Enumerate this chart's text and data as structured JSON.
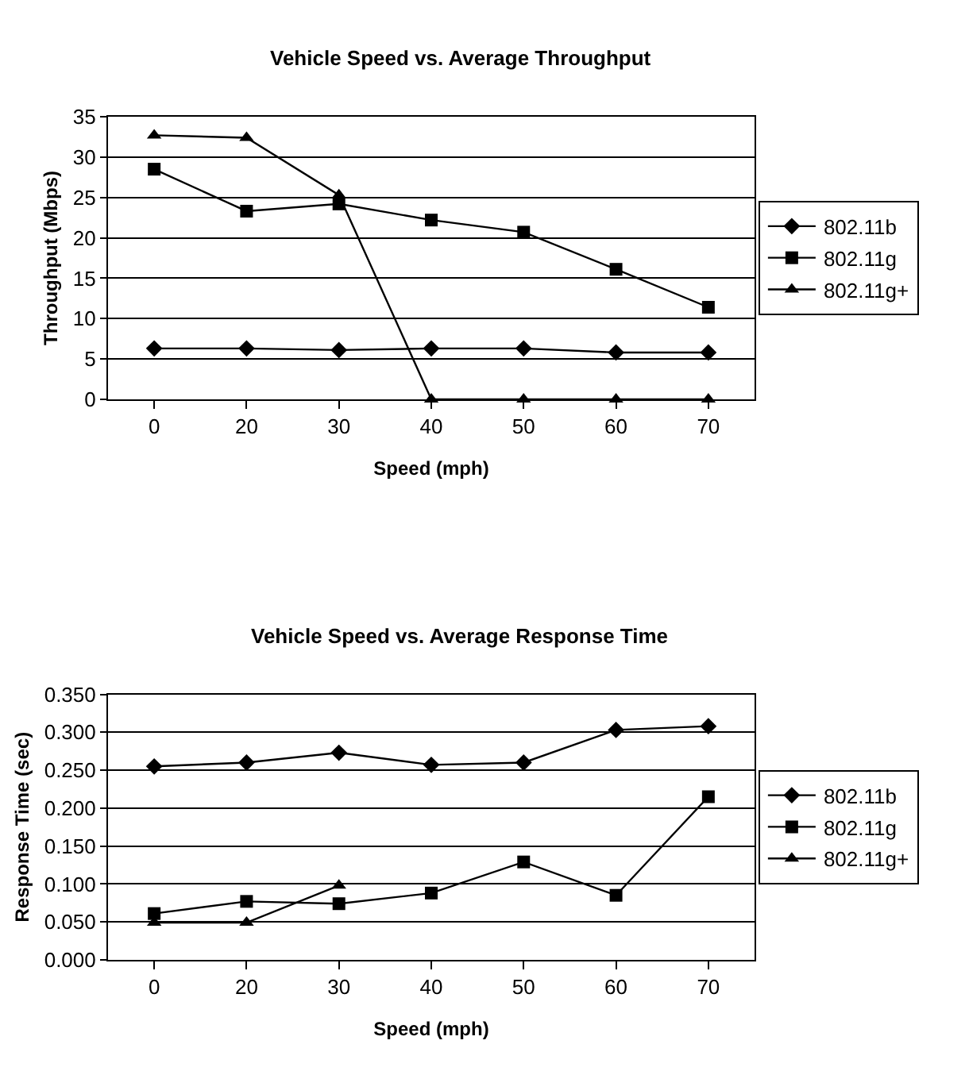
{
  "chart_data": [
    {
      "type": "line",
      "title": "Vehicle Speed vs. Average Throughput",
      "xlabel": "Speed (mph)",
      "ylabel": "Throughput (Mbps)",
      "categories": [
        "0",
        "20",
        "30",
        "40",
        "50",
        "60",
        "70"
      ],
      "ylim": [
        0,
        35
      ],
      "yticks": [
        0,
        5,
        10,
        15,
        20,
        25,
        30,
        35
      ],
      "grid": "y",
      "legend": "right",
      "series": [
        {
          "name": "802.11b",
          "color": "#000000",
          "marker": "diamond",
          "values": [
            6.3,
            6.3,
            6.1,
            6.3,
            6.3,
            5.8,
            5.8
          ]
        },
        {
          "name": "802.11g",
          "color": "#000000",
          "marker": "square",
          "values": [
            28.5,
            23.3,
            24.2,
            22.2,
            20.7,
            16.1,
            11.4
          ]
        },
        {
          "name": "802.11g+",
          "color": "#000000",
          "marker": "triangle",
          "values": [
            32.7,
            32.4,
            25.3,
            0,
            0,
            0,
            0
          ]
        }
      ]
    },
    {
      "type": "line",
      "title": "Vehicle Speed vs. Average Response Time",
      "xlabel": "Speed (mph)",
      "ylabel": "Response Time (sec)",
      "categories": [
        "0",
        "20",
        "30",
        "40",
        "50",
        "60",
        "70"
      ],
      "ylim": [
        0,
        0.35
      ],
      "yticks": [
        {
          "value": 0,
          "label": "0.000"
        },
        {
          "value": 0.05,
          "label": "0.050"
        },
        {
          "value": 0.1,
          "label": "0.100"
        },
        {
          "value": 0.15,
          "label": "0.150"
        },
        {
          "value": 0.2,
          "label": "0.200"
        },
        {
          "value": 0.25,
          "label": "0.250"
        },
        {
          "value": 0.3,
          "label": "0.300"
        },
        {
          "value": 0.35,
          "label": "0.350"
        }
      ],
      "grid": "y",
      "legend": "right",
      "series": [
        {
          "name": "802.11b",
          "color": "#000000",
          "marker": "diamond",
          "values": [
            0.255,
            0.26,
            0.273,
            0.257,
            0.26,
            0.303,
            0.308
          ]
        },
        {
          "name": "802.11g",
          "color": "#000000",
          "marker": "square",
          "values": [
            0.061,
            0.077,
            0.074,
            0.088,
            0.129,
            0.085,
            0.215
          ]
        },
        {
          "name": "802.11g+",
          "color": "#000000",
          "marker": "triangle",
          "values": [
            0.049,
            0.049,
            0.098,
            null,
            null,
            null,
            null
          ]
        }
      ]
    }
  ]
}
